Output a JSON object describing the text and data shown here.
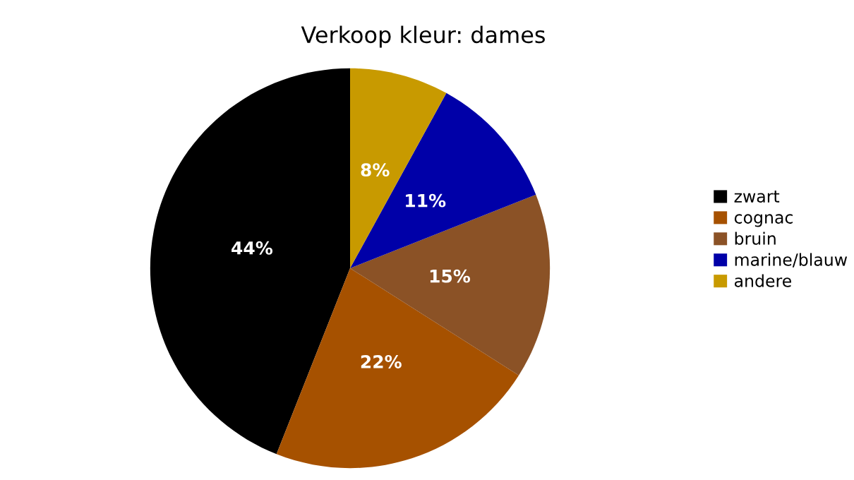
{
  "chart_data": {
    "type": "pie",
    "title": "Verkoop kleur: dames",
    "categories": [
      "zwart",
      "cognac",
      "bruin",
      "marine/blauw",
      "andere"
    ],
    "values": [
      44,
      22,
      15,
      11,
      8
    ],
    "value_labels": [
      "44%",
      "22%",
      "15%",
      "11%",
      "8%"
    ],
    "colors": [
      "#000000",
      "#a65100",
      "#8b5226",
      "#0000a8",
      "#c89a00"
    ],
    "legend": "right"
  }
}
